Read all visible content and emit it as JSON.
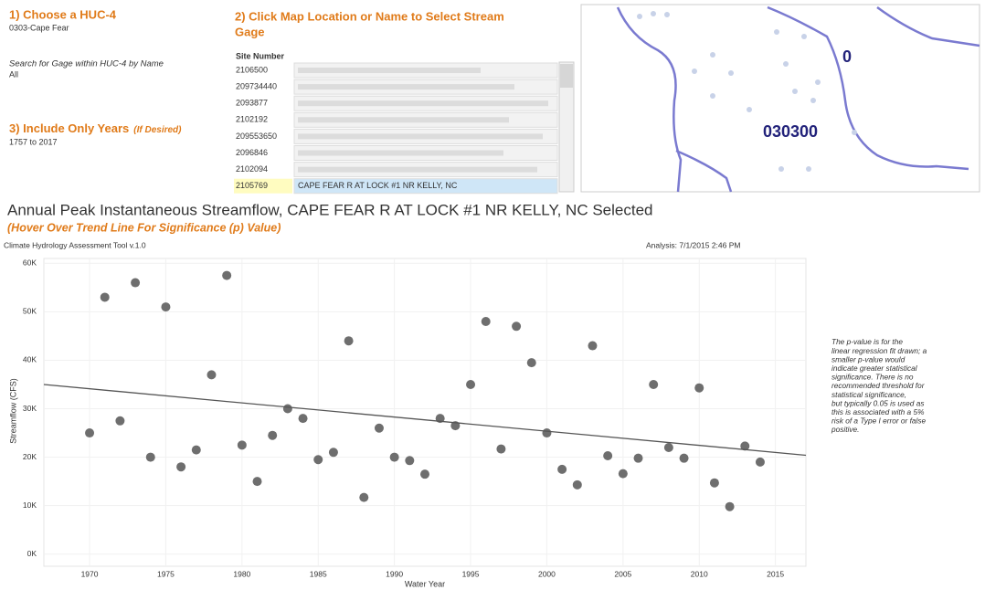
{
  "controls": {
    "huc_title": "1) Choose a HUC-4",
    "huc_value": "0303-Cape Fear",
    "search_title": "Search for Gage within HUC-4 by Name",
    "search_value": "All",
    "years_title": "3) Include Only Years",
    "years_hint": "(If Desired)",
    "years_value": "1757 to 2017"
  },
  "gage_panel": {
    "title_lines": [
      "2) Click Map Location or Name to Select Stream",
      "Gage"
    ],
    "column_header": "Site Number",
    "sites": [
      "2106500",
      "209734440",
      "2093877",
      "2102192",
      "209553650",
      "2096846",
      "2102094",
      "2105769"
    ],
    "selected_name": "CAPE FEAR R AT LOCK #1 NR KELLY, NC"
  },
  "map": {
    "labels": [
      "0",
      "030300"
    ]
  },
  "chart_data": {
    "type": "scatter",
    "title": "Annual Peak Instantaneous Streamflow,  CAPE FEAR R AT LOCK #1 NR KELLY, NC Selected",
    "subtitle": "(Hover Over Trend Line For Significance (p) Value)",
    "source": "Climate Hydrology Assessment Tool v.1.0",
    "analysis": "Analysis: 7/1/2015 2:46 PM",
    "x_label": "Water Year",
    "y_label": "Streamflow (CFS)",
    "color": "#6e6e6e",
    "grid": true,
    "x": [
      1970,
      1971,
      1972,
      1973,
      1974,
      1975,
      1976,
      1977,
      1978,
      1979,
      1980,
      1981,
      1982,
      1983,
      1984,
      1985,
      1986,
      1987,
      1988,
      1989,
      1990,
      1991,
      1992,
      1993,
      1994,
      1995,
      1996,
      1997,
      1998,
      1999,
      2000,
      2001,
      2002,
      2003,
      2004,
      2005,
      2006,
      2007,
      2008,
      2009,
      2010,
      2011,
      2012,
      2013,
      2014
    ],
    "values": [
      25000,
      53000,
      27500,
      56000,
      20000,
      51000,
      18000,
      21500,
      37000,
      57500,
      22500,
      15000,
      24500,
      30000,
      28000,
      19500,
      21000,
      44000,
      11700,
      26000,
      20000,
      19300,
      16500,
      28000,
      26500,
      35000,
      48000,
      21700,
      47000,
      39500,
      25000,
      17500,
      14300,
      43000,
      20300,
      16600,
      19800,
      35000,
      22000,
      19800,
      34300,
      14700,
      9800,
      22300,
      19000
    ],
    "trend": {
      "x": [
        1967,
        2017
      ],
      "y": [
        35000,
        20400
      ]
    },
    "xlim": [
      1967,
      2017
    ],
    "ylim": [
      -2500,
      61000
    ],
    "xticks": [
      1970,
      1975,
      1980,
      1985,
      1990,
      1995,
      2000,
      2005,
      2010,
      2015
    ],
    "yticks": [
      {
        "value": 0,
        "label": "0K"
      },
      {
        "value": 10000,
        "label": "10K"
      },
      {
        "value": 20000,
        "label": "20K"
      },
      {
        "value": 30000,
        "label": "30K"
      },
      {
        "value": 40000,
        "label": "40K"
      },
      {
        "value": 50000,
        "label": "50K"
      },
      {
        "value": 60000,
        "label": "60K"
      }
    ],
    "note_lines": [
      "The p-value is for the",
      "linear regression fit drawn; a",
      "smaller p-value would",
      "indicate greater statistical",
      "significance. There is no",
      "recommended threshold for",
      "statistical significance,",
      "but typically 0.05 is used as",
      "this is associated with a 5%",
      "risk of a Type I error or false",
      "positive."
    ]
  }
}
